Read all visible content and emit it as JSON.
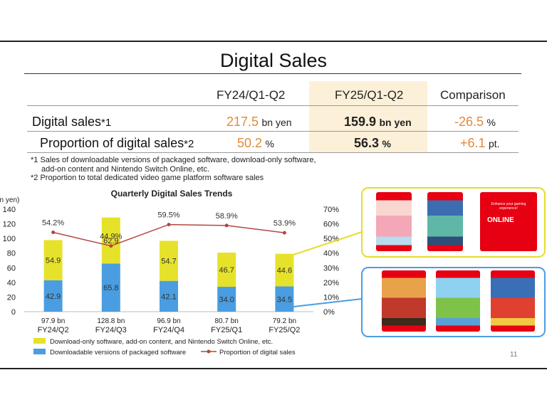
{
  "slide": {
    "title": "Digital Sales",
    "page_number": "11"
  },
  "table": {
    "headers": [
      "FY24/Q1-Q2",
      "FY25/Q1-Q2",
      "Comparison"
    ],
    "rows": [
      {
        "label": "Digital sales",
        "mark": "*1",
        "fy24": "217.5",
        "fy24_unit": "bn yen",
        "fy25": "159.9",
        "fy25_unit": "bn yen",
        "cmp": "-26.5",
        "cmp_unit": "%"
      },
      {
        "label": "Proportion of digital sales",
        "mark": "*2",
        "fy24": "50.2",
        "fy24_unit": "%",
        "fy25": "56.3",
        "fy25_unit": "%",
        "cmp": "+6.1",
        "cmp_unit": "pt."
      }
    ]
  },
  "notes": [
    "*1 Sales of downloadable versions of packaged software, download-only software,",
    "add-on content and Nintendo Switch Online, etc.",
    "*2 Proportion to total dedicated video game platform software sales"
  ],
  "chart_data": {
    "type": "bar",
    "title": "Quarterly Digital Sales Trends",
    "ylabel": "on yen)",
    "ylim": [
      0,
      140
    ],
    "y2lim": [
      0,
      70
    ],
    "yticks": [
      "0",
      "20",
      "40",
      "60",
      "80",
      "100",
      "120",
      "140"
    ],
    "y2ticks": [
      "0%",
      "10%",
      "20%",
      "30%",
      "40%",
      "50%",
      "60%",
      "70%"
    ],
    "categories": [
      "FY24/Q2",
      "FY24/Q3",
      "FY24/Q4",
      "FY25/Q1",
      "FY25/Q2"
    ],
    "totals": [
      "97.9 bn",
      "128.8 bn",
      "96.9 bn",
      "80.7 bn",
      "79.2 bn"
    ],
    "series": [
      {
        "name": "Downloadable versions of packaged software",
        "values": [
          42.9,
          65.8,
          42.1,
          34.0,
          34.5
        ],
        "labels": [
          "42.9",
          "65.8",
          "42.1",
          "34.0",
          "34.5"
        ],
        "color": "#4a9de0"
      },
      {
        "name": "Download-only software, add-on content, and Nintendo Switch Online, etc.",
        "values": [
          54.9,
          62.9,
          54.7,
          46.7,
          44.6
        ],
        "labels": [
          "54.9",
          "62.9",
          "54.7",
          "46.7",
          "44.6"
        ],
        "color": "#e6e22b"
      },
      {
        "name": "Proportion of digital sales",
        "type": "line",
        "values": [
          54.2,
          44.9,
          59.5,
          58.9,
          53.9
        ],
        "labels": [
          "54.2%",
          "44.9%",
          "59.5%",
          "58.9%",
          "53.9%"
        ],
        "color": "#b5463f"
      }
    ],
    "legend_position": "bottom-left",
    "grid": false
  },
  "colors": {
    "highlight": "#fdf0d9",
    "orange_value": "#e08a3b",
    "yellow_frame": "#e6dd2b",
    "blue_frame": "#4a9de0",
    "switch_red": "#e60012"
  },
  "images": {
    "yellow_group": [
      "kirby-box-art",
      "pokemon-box-art",
      "nintendo-switch-online-card"
    ],
    "blue_group": [
      "paper-mario-box-art",
      "zelda-box-art",
      "mario-kart-box-art"
    ],
    "nso_card": {
      "line1": "Enhance your gaming experience!",
      "brand": "ONLINE"
    }
  }
}
